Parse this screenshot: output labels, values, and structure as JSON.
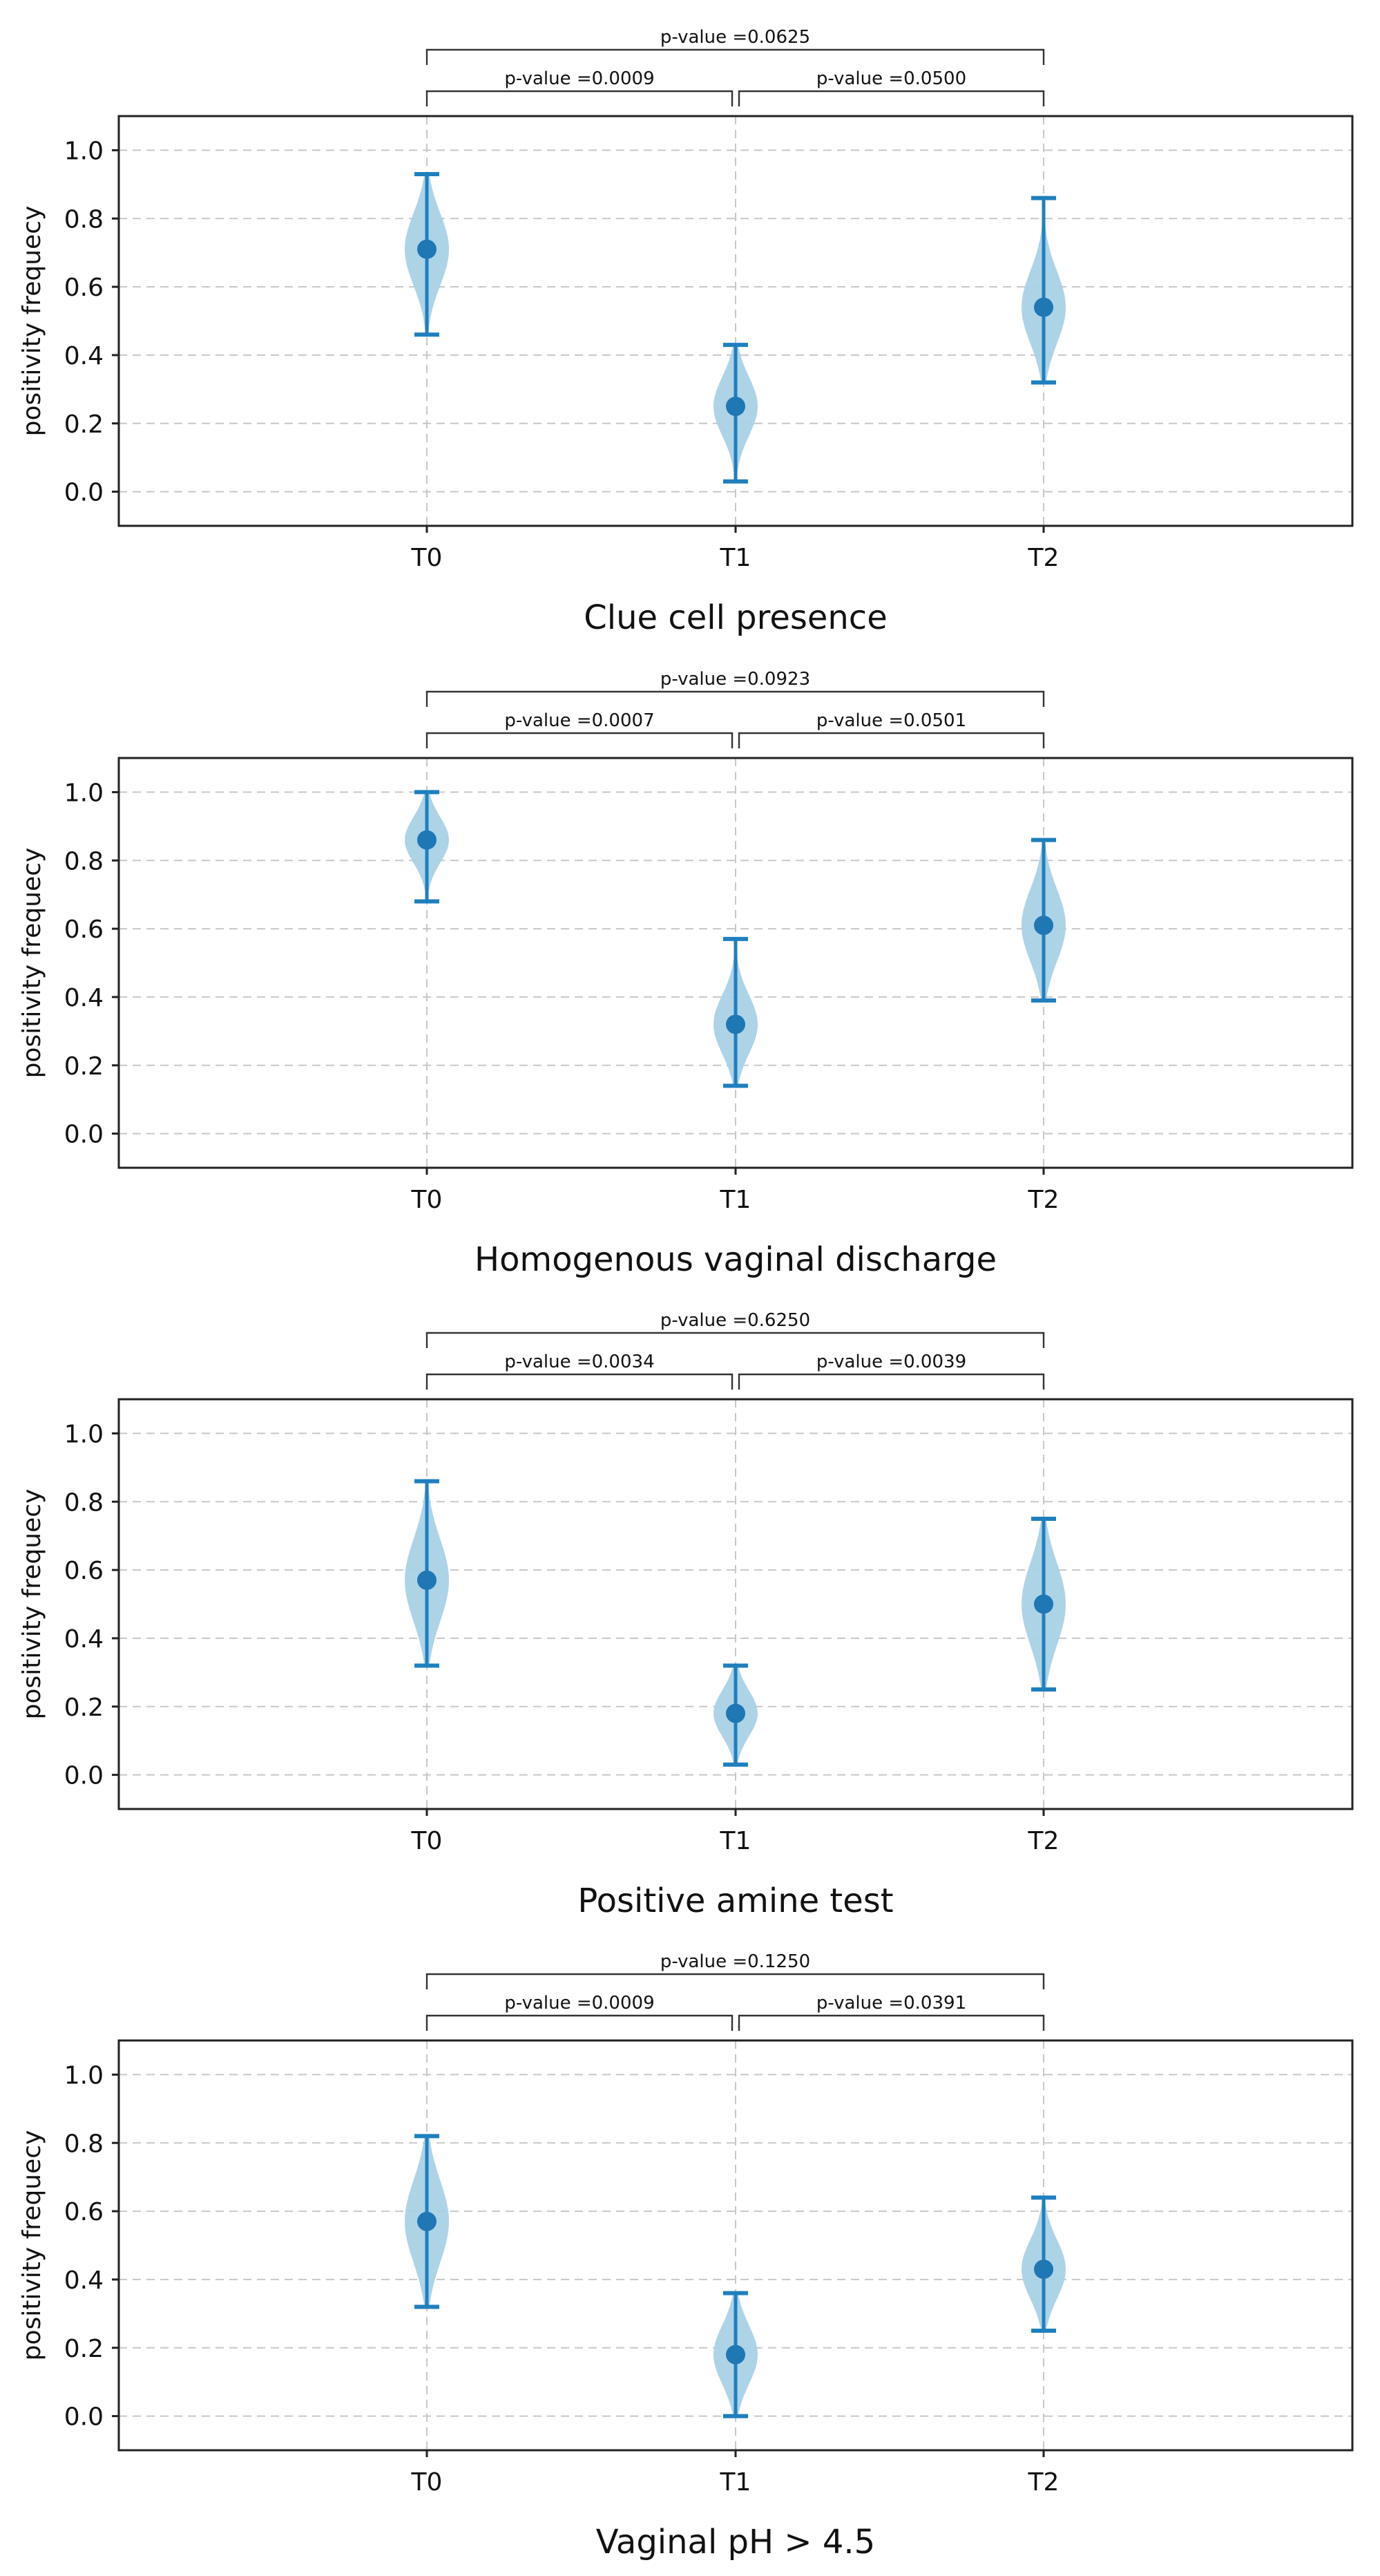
{
  "chart_data": [
    {
      "type": "violin",
      "title": "Clue cell presence",
      "ylabel": "positivity frequecy",
      "ylim": [
        -0.1,
        1.1
      ],
      "yticks": [
        "0.0",
        "0.2",
        "0.4",
        "0.6",
        "0.8",
        "1.0"
      ],
      "grid": true,
      "categories": [
        "T0",
        "T1",
        "T2"
      ],
      "series": [
        {
          "category": "T0",
          "mean": 0.71,
          "min": 0.46,
          "max": 0.93
        },
        {
          "category": "T1",
          "mean": 0.25,
          "min": 0.03,
          "max": 0.43
        },
        {
          "category": "T2",
          "mean": 0.54,
          "min": 0.32,
          "max": 0.86
        }
      ],
      "comparisons": [
        {
          "from": "T0",
          "to": "T2",
          "label": "p-value =0.0625"
        },
        {
          "from": "T0",
          "to": "T1",
          "label": "p-value =0.0009"
        },
        {
          "from": "T1",
          "to": "T2",
          "label": "p-value =0.0500"
        }
      ]
    },
    {
      "type": "violin",
      "title": "Homogenous vaginal discharge",
      "ylabel": "positivity frequecy",
      "ylim": [
        -0.1,
        1.1
      ],
      "yticks": [
        "0.0",
        "0.2",
        "0.4",
        "0.6",
        "0.8",
        "1.0"
      ],
      "grid": true,
      "categories": [
        "T0",
        "T1",
        "T2"
      ],
      "series": [
        {
          "category": "T0",
          "mean": 0.86,
          "min": 0.68,
          "max": 1.0
        },
        {
          "category": "T1",
          "mean": 0.32,
          "min": 0.14,
          "max": 0.57
        },
        {
          "category": "T2",
          "mean": 0.61,
          "min": 0.39,
          "max": 0.86
        }
      ],
      "comparisons": [
        {
          "from": "T0",
          "to": "T2",
          "label": "p-value =0.0923"
        },
        {
          "from": "T0",
          "to": "T1",
          "label": "p-value =0.0007"
        },
        {
          "from": "T1",
          "to": "T2",
          "label": "p-value =0.0501"
        }
      ]
    },
    {
      "type": "violin",
      "title": "Positive amine test",
      "ylabel": "positivity frequecy",
      "ylim": [
        -0.1,
        1.1
      ],
      "yticks": [
        "0.0",
        "0.2",
        "0.4",
        "0.6",
        "0.8",
        "1.0"
      ],
      "grid": true,
      "categories": [
        "T0",
        "T1",
        "T2"
      ],
      "series": [
        {
          "category": "T0",
          "mean": 0.57,
          "min": 0.32,
          "max": 0.86
        },
        {
          "category": "T1",
          "mean": 0.18,
          "min": 0.03,
          "max": 0.32
        },
        {
          "category": "T2",
          "mean": 0.5,
          "min": 0.25,
          "max": 0.75
        }
      ],
      "comparisons": [
        {
          "from": "T0",
          "to": "T2",
          "label": "p-value =0.6250"
        },
        {
          "from": "T0",
          "to": "T1",
          "label": "p-value =0.0034"
        },
        {
          "from": "T1",
          "to": "T2",
          "label": "p-value =0.0039"
        }
      ]
    },
    {
      "type": "violin",
      "title": "Vaginal pH > 4.5",
      "ylabel": "positivity frequecy",
      "ylim": [
        -0.1,
        1.1
      ],
      "yticks": [
        "0.0",
        "0.2",
        "0.4",
        "0.6",
        "0.8",
        "1.0"
      ],
      "grid": true,
      "categories": [
        "T0",
        "T1",
        "T2"
      ],
      "series": [
        {
          "category": "T0",
          "mean": 0.57,
          "min": 0.32,
          "max": 0.82
        },
        {
          "category": "T1",
          "mean": 0.18,
          "min": 0.0,
          "max": 0.36
        },
        {
          "category": "T2",
          "mean": 0.43,
          "min": 0.25,
          "max": 0.64
        }
      ],
      "comparisons": [
        {
          "from": "T0",
          "to": "T2",
          "label": "p-value =0.1250"
        },
        {
          "from": "T0",
          "to": "T1",
          "label": "p-value =0.0009"
        },
        {
          "from": "T1",
          "to": "T2",
          "label": "p-value =0.0391"
        }
      ]
    }
  ],
  "colors": {
    "violin_fill": "#a9d1e6",
    "marker": "#1f77b4",
    "errorbar": "#1f7fbf",
    "grid": "#c8c8c8",
    "text": "#111111"
  }
}
